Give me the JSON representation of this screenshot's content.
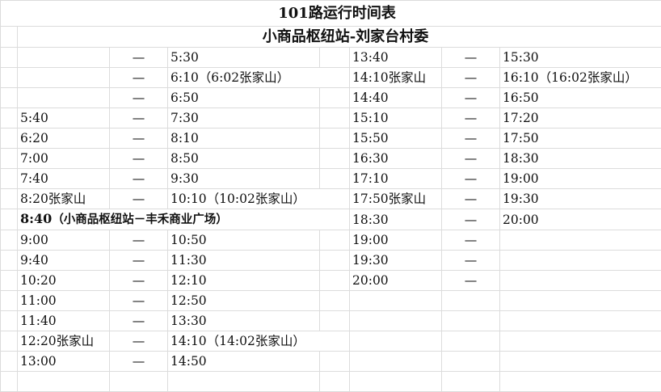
{
  "title": "101路运行时间表",
  "subtitle": "小商品枢纽站-刘家台村委",
  "dash": "—",
  "rows": [
    {
      "b": "",
      "c": "—",
      "d": "5:30",
      "f": "13:40",
      "g": "—",
      "h": "15:30"
    },
    {
      "b": "",
      "c": "—",
      "d": "6:10（6:02张家山）",
      "f": "14:10张家山",
      "g": "—",
      "h": "16:10（16:02张家山）"
    },
    {
      "b": "",
      "c": "—",
      "d": "6:50",
      "f": "14:40",
      "g": "—",
      "h": "16:50"
    },
    {
      "b": "5:40",
      "c": "—",
      "d": "7:30",
      "f": "15:10",
      "g": "—",
      "h": "17:20"
    },
    {
      "b": "6:20",
      "c": "—",
      "d": "8:10",
      "f": "15:50",
      "g": "—",
      "h": "17:50"
    },
    {
      "b": "7:00",
      "c": "—",
      "d": "8:50",
      "f": "16:30",
      "g": "—",
      "h": "18:30"
    },
    {
      "b": "7:40",
      "c": "—",
      "d": "9:30",
      "f": "17:10",
      "g": "—",
      "h": "19:00"
    },
    {
      "b": "8:20张家山",
      "c": "—",
      "d": "10:10（10:02张家山）",
      "f": "17:50张家山",
      "g": "—",
      "h": "19:30"
    },
    {
      "bold_time": "8:40",
      "bold_note": "（小商品枢纽站－丰禾商业广场）",
      "f": "18:30",
      "g": "—",
      "h": "20:00"
    },
    {
      "b": "9:00",
      "c": "—",
      "d": "10:50",
      "f": "19:00",
      "g": "—",
      "h": ""
    },
    {
      "b": "9:40",
      "c": "—",
      "d": "11:30",
      "f": "19:30",
      "g": "—",
      "h": ""
    },
    {
      "b": "10:20",
      "c": "—",
      "d": "12:10",
      "f": "20:00",
      "g": "—",
      "h": ""
    },
    {
      "b": "11:00",
      "c": "—",
      "d": "12:50",
      "f": "",
      "g": "",
      "h": ""
    },
    {
      "b": "11:40",
      "c": "—",
      "d": "13:30",
      "f": "",
      "g": "",
      "h": ""
    },
    {
      "b": "12:20张家山",
      "c": "—",
      "d": "14:10（14:02张家山）",
      "f": "",
      "g": "",
      "h": ""
    },
    {
      "b": "13:00",
      "c": "—",
      "d": "14:50",
      "f": "",
      "g": "",
      "h": ""
    },
    {
      "b": "",
      "c": "",
      "d": "",
      "f": "",
      "g": "",
      "h": ""
    }
  ]
}
